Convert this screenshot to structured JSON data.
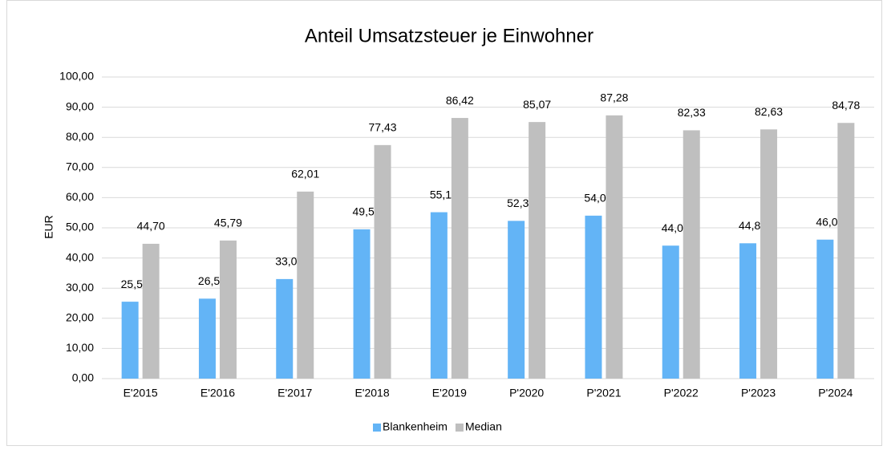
{
  "chart_data": {
    "type": "bar",
    "title": "Anteil Umsatzsteuer je Einwohner",
    "y_label": "EUR",
    "categories": [
      "E'2015",
      "E'2016",
      "E'2017",
      "E'2018",
      "E'2019",
      "P'2020",
      "P'2021",
      "P'2022",
      "P'2023",
      "P'2024"
    ],
    "series": [
      {
        "name": "Blankenheim",
        "color": "#63b4f6",
        "values": [
          25.5,
          26.51,
          33.01,
          49.5,
          55.17,
          52.3,
          54.03,
          44.09,
          44.87,
          46.08
        ],
        "value_labels": [
          "25,50",
          "26,51",
          "33,01",
          "49,50",
          "55,17",
          "52,30",
          "54,03",
          "44,09",
          "44,87",
          "46,08"
        ]
      },
      {
        "name": "Median",
        "color": "#bfbfbf",
        "values": [
          44.7,
          45.79,
          62.01,
          77.43,
          86.42,
          85.07,
          87.28,
          82.33,
          82.63,
          84.78
        ],
        "value_labels": [
          "44,70",
          "45,79",
          "62,01",
          "77,43",
          "86,42",
          "85,07",
          "87,28",
          "82,33",
          "82,63",
          "84,78"
        ]
      }
    ],
    "ylim": [
      0,
      100
    ],
    "yticks": [
      {
        "value": 0,
        "label": "0,00"
      },
      {
        "value": 10,
        "label": "10,00"
      },
      {
        "value": 20,
        "label": "20,00"
      },
      {
        "value": 30,
        "label": "30,00"
      },
      {
        "value": 40,
        "label": "40,00"
      },
      {
        "value": 50,
        "label": "50,00"
      },
      {
        "value": 60,
        "label": "60,00"
      },
      {
        "value": 70,
        "label": "70,00"
      },
      {
        "value": 80,
        "label": "80,00"
      },
      {
        "value": 90,
        "label": "90,00"
      },
      {
        "value": 100,
        "label": "100,00"
      }
    ],
    "grid": true,
    "legend": "bottom"
  }
}
